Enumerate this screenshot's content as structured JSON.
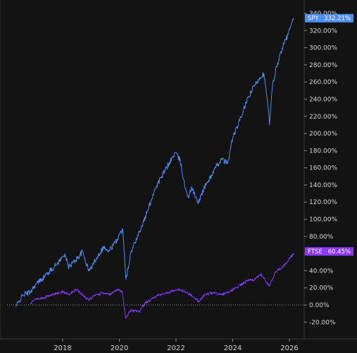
{
  "chart_data": {
    "type": "line",
    "title": "",
    "xlabel": "",
    "ylabel": "",
    "ylim": [
      -27,
      345
    ],
    "xlim": [
      2016.35,
      2026.35
    ],
    "grid": false,
    "y_unit": "%",
    "y_ticks": [
      "340.00%",
      "320.00%",
      "300.00%",
      "280.00%",
      "260.00%",
      "240.00%",
      "220.00%",
      "200.00%",
      "180.00%",
      "160.00%",
      "140.00%",
      "120.00%",
      "100.00%",
      "80.00%",
      "60.00%",
      "40.00%",
      "20.00%",
      "0.00%",
      "-20.00%"
    ],
    "y_tick_values": [
      340,
      320,
      300,
      280,
      260,
      240,
      220,
      200,
      180,
      160,
      140,
      120,
      100,
      80,
      60,
      40,
      20,
      0,
      -20
    ],
    "x_ticks": [
      "2018",
      "2020",
      "2022",
      "2024",
      "2026"
    ],
    "x_tick_values": [
      2018,
      2020,
      2022,
      2024,
      2026
    ],
    "zero_line": true,
    "series": [
      {
        "name": "SPY",
        "color": "#4f8ef7",
        "last_value_label": "332.21%",
        "x": [
          2016.35,
          2016.6,
          2016.85,
          2017.0,
          2017.25,
          2017.5,
          2017.75,
          2018.0,
          2018.08,
          2018.2,
          2018.45,
          2018.7,
          2018.92,
          2018.98,
          2019.2,
          2019.45,
          2019.6,
          2019.85,
          2020.0,
          2020.12,
          2020.18,
          2020.23,
          2020.4,
          2020.6,
          2020.8,
          2021.0,
          2021.25,
          2021.5,
          2021.75,
          2021.98,
          2022.15,
          2022.3,
          2022.45,
          2022.55,
          2022.7,
          2022.78,
          2022.9,
          2023.05,
          2023.2,
          2023.4,
          2023.6,
          2023.82,
          2024.0,
          2024.25,
          2024.5,
          2024.75,
          2024.95,
          2025.1,
          2025.25,
          2025.3,
          2025.4,
          2025.55,
          2025.75,
          2025.95,
          2026.1,
          2026.15
        ],
        "y": [
          -2,
          12,
          15,
          22,
          30,
          38,
          46,
          56,
          60,
          44,
          52,
          62,
          40,
          42,
          55,
          68,
          62,
          72,
          82,
          88,
          60,
          30,
          60,
          78,
          92,
          110,
          135,
          150,
          165,
          178,
          168,
          140,
          125,
          138,
          125,
          118,
          130,
          140,
          148,
          160,
          170,
          165,
          195,
          215,
          238,
          255,
          265,
          270,
          230,
          210,
          255,
          278,
          300,
          315,
          330,
          332
        ]
      },
      {
        "name": "FTSE",
        "color": "#8a37ff",
        "last_value_label": "60.45%",
        "x": [
          2016.85,
          2017.0,
          2017.3,
          2017.6,
          2017.9,
          2018.0,
          2018.2,
          2018.5,
          2018.9,
          2019.1,
          2019.4,
          2019.7,
          2019.9,
          2020.1,
          2020.18,
          2020.23,
          2020.4,
          2020.7,
          2020.9,
          2021.1,
          2021.4,
          2021.7,
          2022.0,
          2022.3,
          2022.6,
          2022.8,
          2023.0,
          2023.3,
          2023.6,
          2023.9,
          2024.2,
          2024.5,
          2024.8,
          2025.0,
          2025.25,
          2025.3,
          2025.5,
          2025.8,
          2026.0,
          2026.15
        ],
        "y": [
          2,
          6,
          8,
          12,
          14,
          16,
          12,
          18,
          6,
          10,
          14,
          12,
          18,
          16,
          -5,
          -16,
          -6,
          -8,
          2,
          6,
          12,
          14,
          18,
          16,
          10,
          4,
          12,
          14,
          12,
          16,
          22,
          28,
          30,
          36,
          24,
          22,
          38,
          46,
          54,
          60
        ]
      }
    ]
  }
}
